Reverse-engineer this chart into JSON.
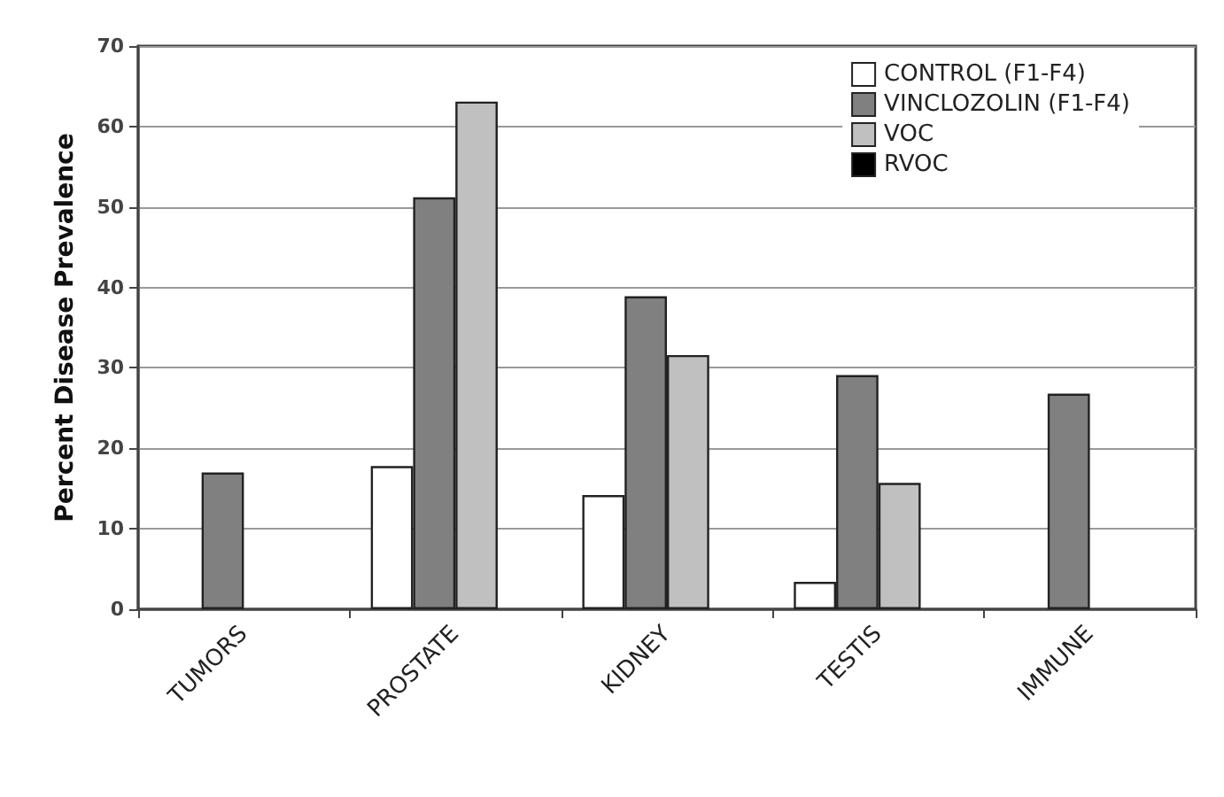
{
  "chart_data": {
    "type": "bar",
    "ylabel": "Percent Disease Prevalence",
    "categories": [
      "TUMORS",
      "PROSTATE",
      "KIDNEY",
      "TESTIS",
      "IMMUNE"
    ],
    "series": [
      {
        "name": "CONTROL (F1-F4)",
        "color": "#ffffff",
        "values": [
          0,
          17.8,
          14.2,
          3.4,
          0
        ]
      },
      {
        "name": "VINCLOZOLIN (F1-F4)",
        "color": "#808080",
        "values": [
          17.0,
          51.2,
          38.9,
          29.1,
          26.8
        ]
      },
      {
        "name": "VOC",
        "color": "#c0c0c0",
        "values": [
          0,
          63.1,
          31.6,
          15.7,
          0
        ]
      },
      {
        "name": "RVOC",
        "color": "#000000",
        "values": [
          0,
          0,
          0,
          0,
          0
        ]
      }
    ],
    "ylim": [
      0,
      70
    ],
    "yticks": [
      0,
      10,
      20,
      30,
      40,
      50,
      60,
      70
    ],
    "grid": "y",
    "legend": "top right"
  }
}
